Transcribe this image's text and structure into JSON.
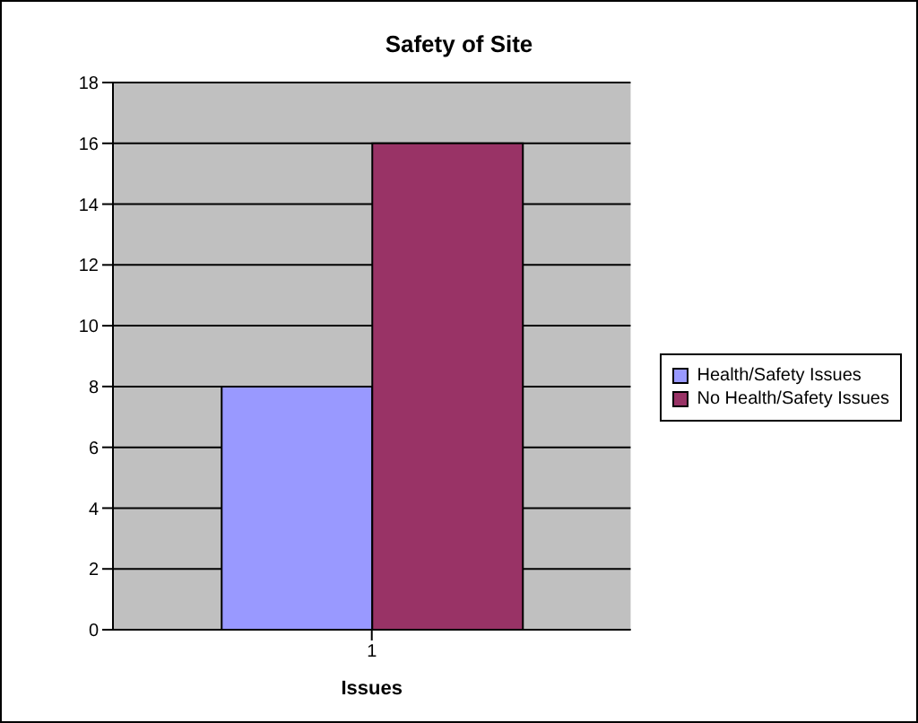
{
  "chart_data": {
    "type": "bar",
    "title": "Safety of Site",
    "xlabel": "Issues",
    "categories": [
      "1"
    ],
    "series": [
      {
        "name": "Health/Safety Issues",
        "color": "#9999ff",
        "values": [
          8
        ]
      },
      {
        "name": "No Health/Safety Issues",
        "color": "#993366",
        "values": [
          16
        ]
      }
    ],
    "ylim": [
      0,
      18
    ],
    "yticks": [
      0,
      2,
      4,
      6,
      8,
      10,
      12,
      14,
      16,
      18
    ],
    "grid": "y",
    "legend": "right"
  }
}
